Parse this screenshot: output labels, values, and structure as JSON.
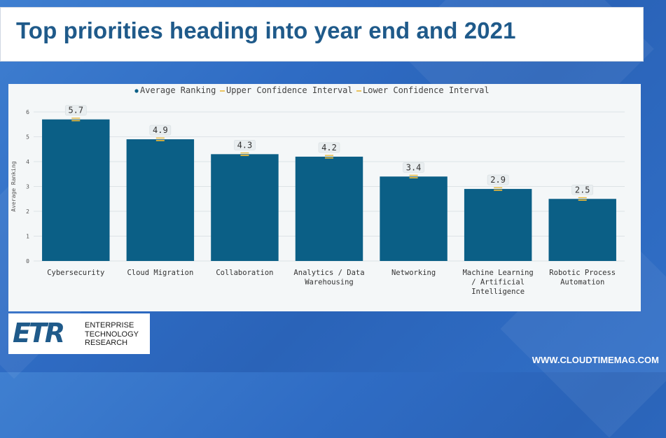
{
  "title": "Top priorities heading into year end and 2021",
  "legend": {
    "items": [
      {
        "label": "Average Ranking",
        "color": "#0b5f86",
        "marker": "dot"
      },
      {
        "label": "Upper Confidence Interval",
        "color": "#e8b83a",
        "marker": "line"
      },
      {
        "label": "Lower Confidence Interval",
        "color": "#e8b83a",
        "marker": "line"
      }
    ]
  },
  "chart_data": {
    "type": "bar",
    "title": "",
    "xlabel": "",
    "ylabel": "Average Ranking",
    "ylim": [
      0,
      6
    ],
    "yticks": [
      0,
      1,
      2,
      3,
      4,
      5,
      6
    ],
    "grid": true,
    "legend_position": "top",
    "categories": [
      "Cybersecurity",
      "Cloud Migration",
      "Collaboration",
      "Analytics / Data Warehousing",
      "Networking",
      "Machine Learning / Artificial Intelligence",
      "Robotic Process Automation"
    ],
    "category_lines": [
      [
        "Cybersecurity"
      ],
      [
        "Cloud Migration"
      ],
      [
        "Collaboration"
      ],
      [
        "Analytics / Data",
        "Warehousing"
      ],
      [
        "Networking"
      ],
      [
        "Machine Learning",
        "/ Artificial",
        "Intelligence"
      ],
      [
        "Robotic Process",
        "Automation"
      ]
    ],
    "series": [
      {
        "name": "Average Ranking",
        "values": [
          5.7,
          4.9,
          4.3,
          4.2,
          3.4,
          2.9,
          2.5
        ],
        "color": "#0b5f86"
      },
      {
        "name": "Upper Confidence Interval",
        "values": [
          5.75,
          4.95,
          4.35,
          4.25,
          3.45,
          2.95,
          2.55
        ],
        "color": "#e8b83a"
      },
      {
        "name": "Lower Confidence Interval",
        "values": [
          5.65,
          4.85,
          4.25,
          4.15,
          3.35,
          2.85,
          2.45
        ],
        "color": "#e8b83a"
      }
    ],
    "data_labels": [
      "5.7",
      "4.9",
      "4.3",
      "4.2",
      "3.4",
      "2.9",
      "2.5"
    ]
  },
  "logo": {
    "mark": "ETR",
    "line1": "ENTERPRISE",
    "line2": "TECHNOLOGY",
    "line3": "RESEARCH"
  },
  "footer": {
    "url": "WWW.CLOUDTIMEMAG.COM"
  },
  "colors": {
    "bar": "#0b5f86",
    "ci": "#e8b83a",
    "title": "#1f5a8a"
  }
}
